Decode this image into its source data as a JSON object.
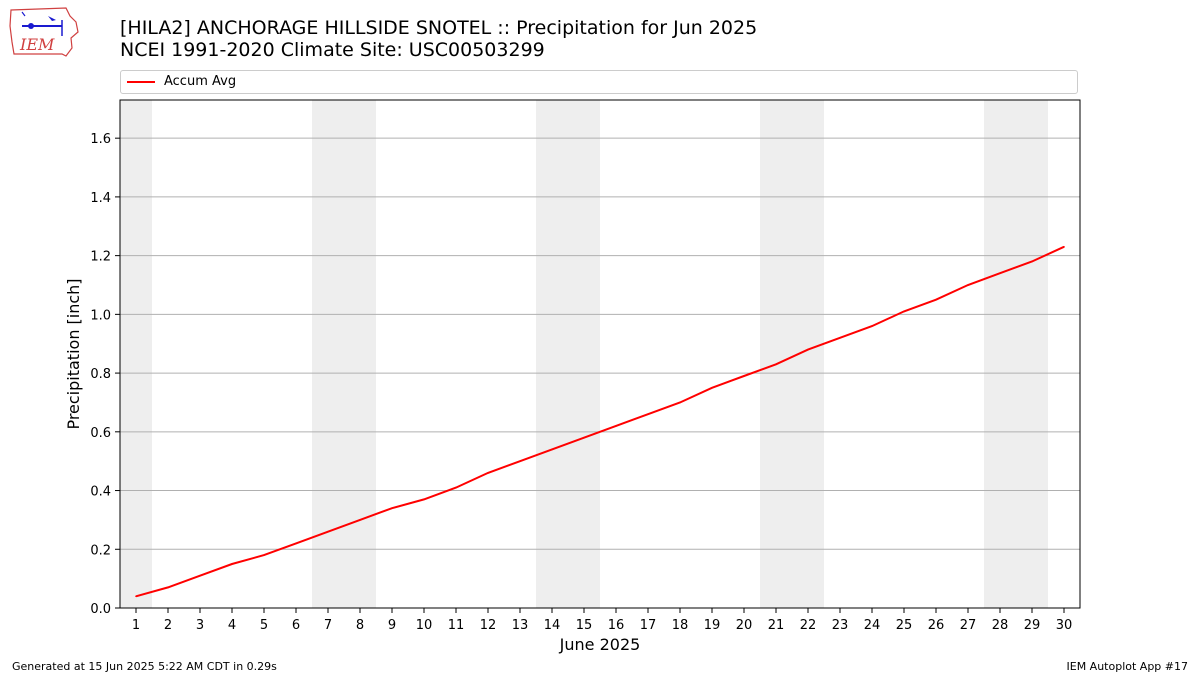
{
  "header": {
    "title_line1": "[HILA2] ANCHORAGE HILLSIDE SNOTEL :: Precipitation for Jun 2025",
    "title_line2": "NCEI 1991-2020 Climate Site: USC00503299"
  },
  "logo": {
    "text": "IEM"
  },
  "footer": {
    "generated": "Generated at 15 Jun 2025 5:22 AM CDT in 0.29s",
    "app": "IEM Autoplot App #17"
  },
  "colors": {
    "series": "#ff0000",
    "weekend_band": "#eeeeee",
    "grid": "#b0b0b0"
  },
  "chart_data": {
    "type": "line",
    "xlabel": "June 2025",
    "ylabel": "Precipitation [inch]",
    "xlim": [
      0.5,
      30.5
    ],
    "ylim": [
      0,
      1.73
    ],
    "x_ticks": [
      1,
      2,
      3,
      4,
      5,
      6,
      7,
      8,
      9,
      10,
      11,
      12,
      13,
      14,
      15,
      16,
      17,
      18,
      19,
      20,
      21,
      22,
      23,
      24,
      25,
      26,
      27,
      28,
      29,
      30
    ],
    "y_ticks": [
      0.0,
      0.2,
      0.4,
      0.6,
      0.8,
      1.0,
      1.2,
      1.4,
      1.6
    ],
    "y_tick_labels": [
      "0.0",
      "0.2",
      "0.4",
      "0.6",
      "0.8",
      "1.0",
      "1.2",
      "1.4",
      "1.6"
    ],
    "grid": "horizontal",
    "legend_position": "top",
    "weekend_days": [
      1,
      7,
      8,
      14,
      15,
      21,
      22,
      28,
      29
    ],
    "series": [
      {
        "name": "Accum Avg",
        "x": [
          1,
          2,
          3,
          4,
          5,
          6,
          7,
          8,
          9,
          10,
          11,
          12,
          13,
          14,
          15,
          16,
          17,
          18,
          19,
          20,
          21,
          22,
          23,
          24,
          25,
          26,
          27,
          28,
          29,
          30
        ],
        "values": [
          0.04,
          0.07,
          0.11,
          0.15,
          0.18,
          0.22,
          0.26,
          0.3,
          0.34,
          0.37,
          0.41,
          0.46,
          0.5,
          0.54,
          0.58,
          0.62,
          0.66,
          0.7,
          0.75,
          0.79,
          0.83,
          0.88,
          0.92,
          0.96,
          1.01,
          1.05,
          1.1,
          1.14,
          1.18,
          1.23
        ]
      }
    ]
  }
}
